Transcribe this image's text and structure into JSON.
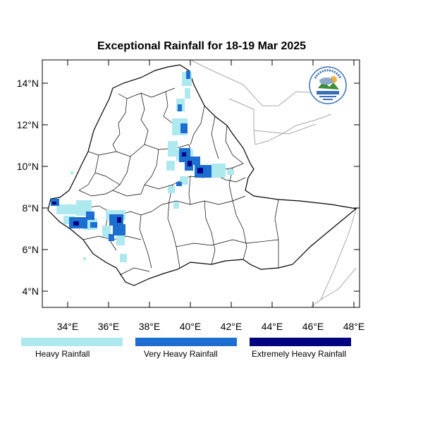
{
  "title": "Exceptional Rainfall for 18-19 Mar 2025",
  "logo_name": "ethiopian-meteorology-institute-logo",
  "axes": {
    "x_ticks": [
      "34°E",
      "36°E",
      "38°E",
      "40°E",
      "42°E",
      "44°E",
      "46°E",
      "48°E"
    ],
    "y_ticks": [
      "14°N",
      "12°N",
      "10°N",
      "8°N",
      "6°N",
      "4°N"
    ]
  },
  "colors": {
    "heavy": "#aee9ef",
    "very_heavy": "#1c6fd0",
    "extremely_heavy": "#00037f",
    "border": "#000000",
    "neighbor_border": "#a9a9a9"
  },
  "legend": [
    {
      "label": "Heavy Rainfall",
      "color": "#aee9ef"
    },
    {
      "label": "Very Heavy Rainfall",
      "color": "#1c6fd0"
    },
    {
      "label": "Extremely Heavy Rainfall",
      "color": "#00037f"
    }
  ]
}
